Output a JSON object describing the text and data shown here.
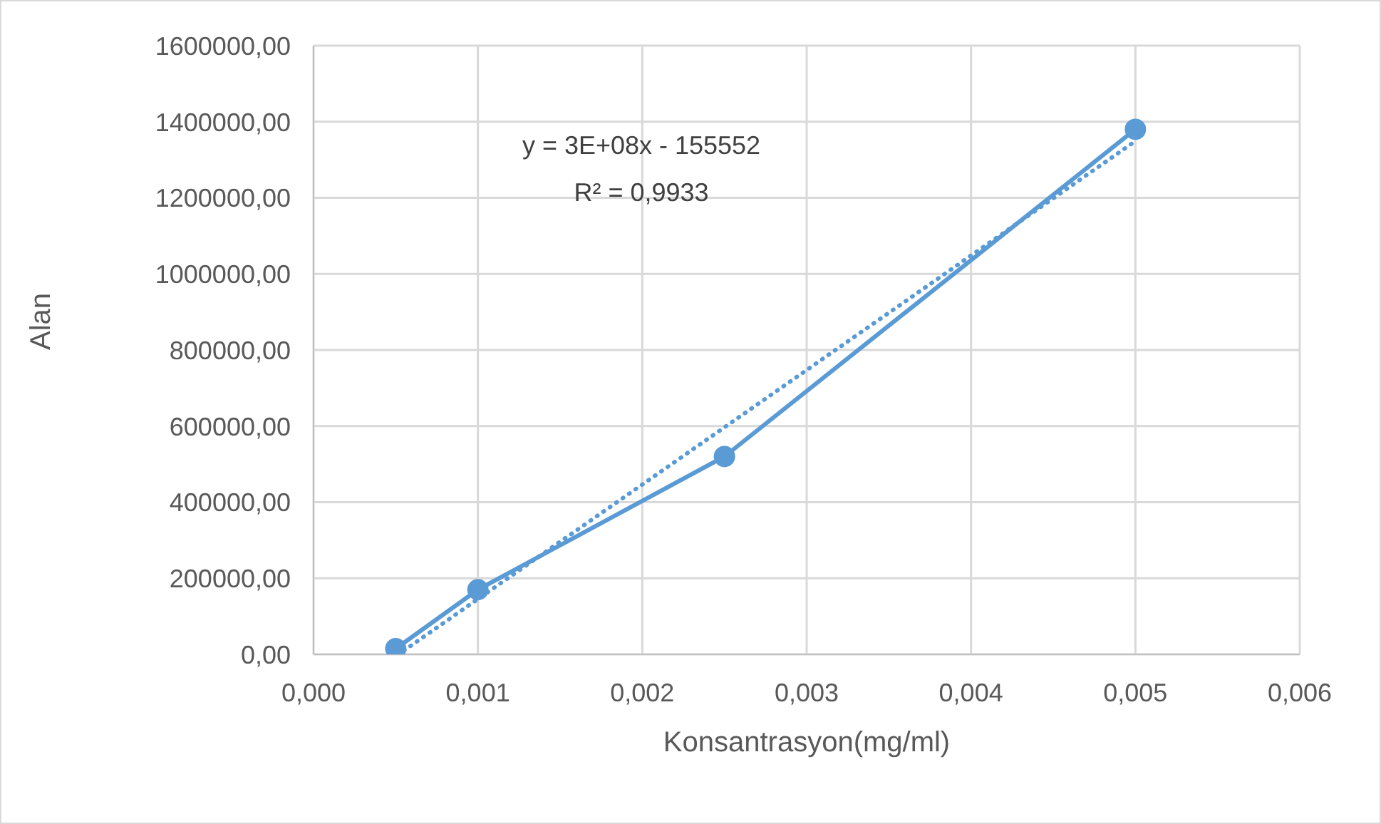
{
  "chart_data": {
    "type": "line",
    "xlabel": "Konsantrasyon(mg/ml)",
    "ylabel": "Alan",
    "annotations": [
      "y = 3E+08x - 155552",
      "R² = 0,9933"
    ],
    "xlim": [
      0,
      0.006
    ],
    "xticks": [
      {
        "value": 0,
        "label": "0,000"
      },
      {
        "value": 0.001,
        "label": "0,001"
      },
      {
        "value": 0.002,
        "label": "0,002"
      },
      {
        "value": 0.003,
        "label": "0,003"
      },
      {
        "value": 0.004,
        "label": "0,004"
      },
      {
        "value": 0.005,
        "label": "0,005"
      },
      {
        "value": 0.006,
        "label": "0,006"
      }
    ],
    "ylim": [
      0,
      1600000
    ],
    "yticks": [
      {
        "value": 0,
        "label": "0,00"
      },
      {
        "value": 200000,
        "label": "200000,00"
      },
      {
        "value": 400000,
        "label": "400000,00"
      },
      {
        "value": 600000,
        "label": "600000,00"
      },
      {
        "value": 800000,
        "label": "800000,00"
      },
      {
        "value": 1000000,
        "label": "1000000,00"
      },
      {
        "value": 1200000,
        "label": "1200000,00"
      },
      {
        "value": 1400000,
        "label": "1400000,00"
      },
      {
        "value": 1600000,
        "label": "1600000,00"
      }
    ],
    "grid": true,
    "series": [
      {
        "type": "line",
        "color": "#5b9bd5",
        "x": [
          0.0005,
          0.001,
          0.0025,
          0.005
        ],
        "values": [
          15000,
          170000,
          520000,
          1380000
        ],
        "marker": "circle",
        "line_style": "solid"
      },
      {
        "type": "line",
        "color": "#5b9bd5",
        "x": [
          0.00055,
          0.005
        ],
        "values": [
          10000,
          1349000
        ],
        "marker": "none",
        "line_style": "dotted"
      }
    ]
  }
}
